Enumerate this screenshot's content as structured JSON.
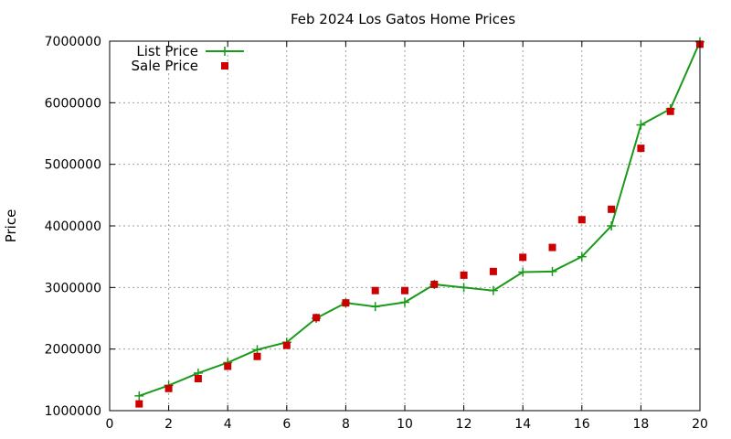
{
  "chart_data": {
    "type": "line",
    "title": "Feb 2024 Los Gatos Home Prices",
    "xlabel": "",
    "ylabel": "Price",
    "xlim": [
      0,
      20
    ],
    "ylim": [
      1000000,
      7000000
    ],
    "xticks": [
      "0",
      "2",
      "4",
      "6",
      "8",
      "10",
      "12",
      "14",
      "16",
      "18",
      "20"
    ],
    "yticks": [
      "1000000",
      "2000000",
      "3000000",
      "4000000",
      "5000000",
      "6000000",
      "7000000"
    ],
    "grid": true,
    "legend_position": "top-left",
    "x": [
      1,
      2,
      3,
      4,
      5,
      6,
      7,
      8,
      9,
      10,
      11,
      12,
      13,
      14,
      15,
      16,
      17,
      18,
      19,
      20
    ],
    "series": [
      {
        "name": "List Price",
        "style": "line+cross",
        "color": "#1a9a1a",
        "values": [
          1240000,
          1410000,
          1610000,
          1780000,
          1990000,
          2110000,
          2500000,
          2750000,
          2690000,
          2760000,
          3050000,
          3000000,
          2950000,
          3250000,
          3260000,
          3500000,
          4000000,
          5640000,
          5900000,
          6990000
        ]
      },
      {
        "name": "Sale Price",
        "style": "square",
        "color": "#cc0000",
        "values": [
          1110000,
          1360000,
          1520000,
          1720000,
          1880000,
          2060000,
          2510000,
          2750000,
          2950000,
          2950000,
          3050000,
          3200000,
          3260000,
          3490000,
          3650000,
          4100000,
          4270000,
          5260000,
          5860000,
          6950000
        ]
      }
    ]
  }
}
